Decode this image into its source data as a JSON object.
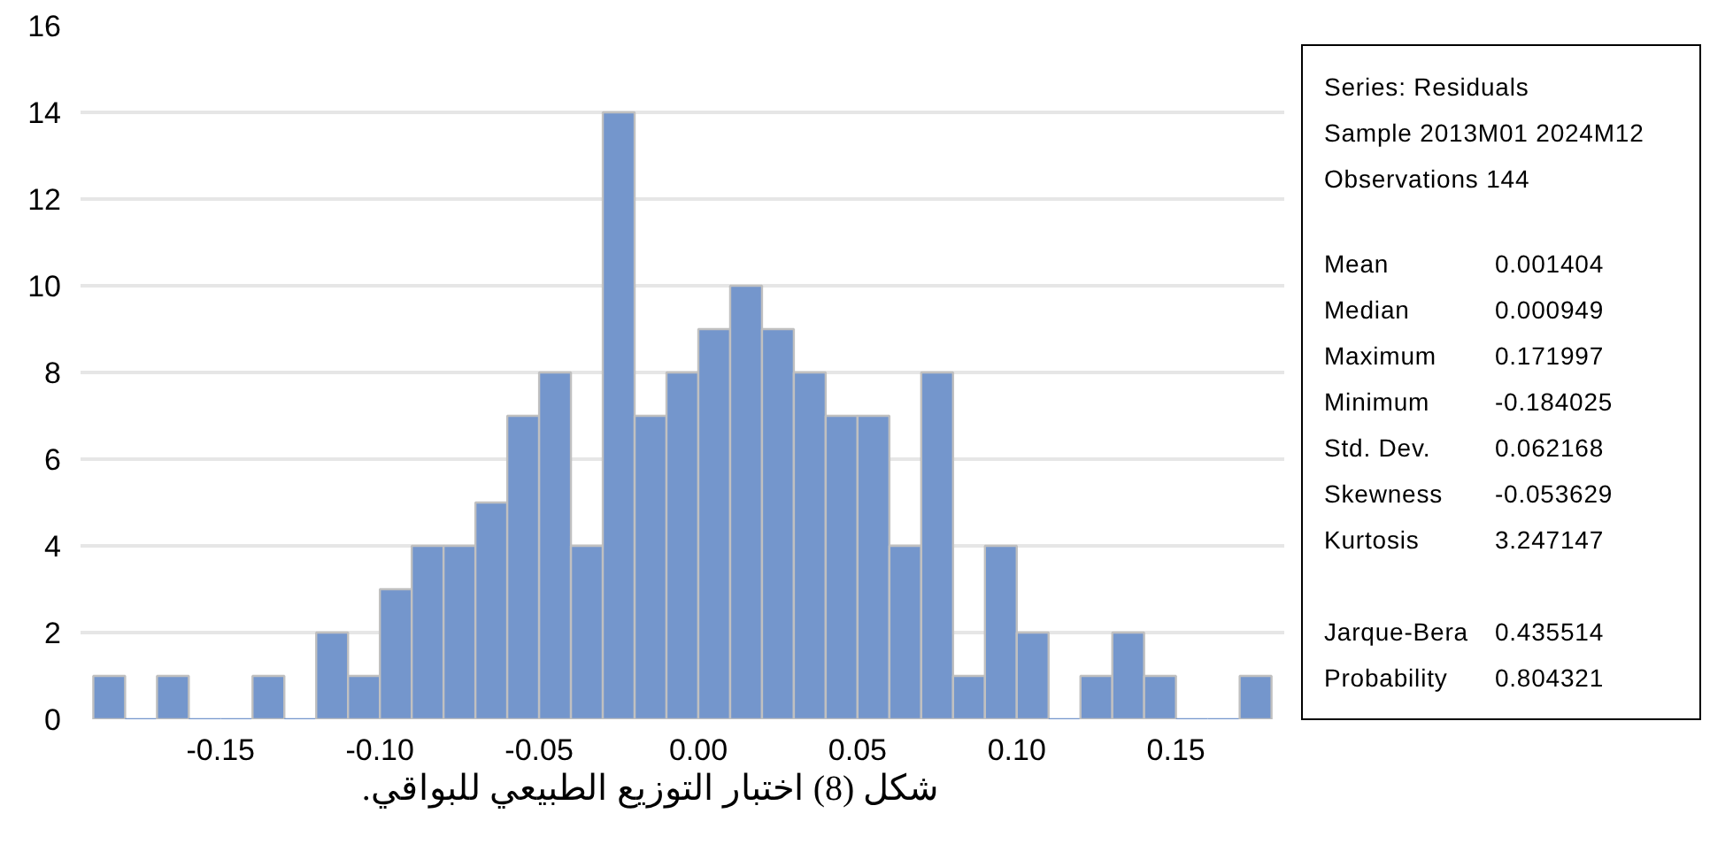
{
  "chart_data": [
    {
      "type": "histogram",
      "color": "#7496cc",
      "bins": [
        -0.19,
        -0.18,
        -0.17,
        -0.16,
        -0.15,
        -0.14,
        -0.13,
        -0.12,
        -0.11,
        -0.1,
        -0.09,
        -0.08,
        -0.07,
        -0.06,
        -0.05,
        -0.04,
        -0.03,
        -0.02,
        -0.01,
        0.0,
        0.01,
        0.02,
        0.03,
        0.04,
        0.05,
        0.06,
        0.07,
        0.08,
        0.09,
        0.1,
        0.11,
        0.12,
        0.13,
        0.14,
        0.15,
        0.16,
        0.17,
        0.18
      ],
      "values": [
        1,
        0,
        1,
        0,
        0,
        1,
        0,
        2,
        1,
        3,
        4,
        4,
        5,
        7,
        8,
        4,
        14,
        7,
        8,
        9,
        10,
        9,
        8,
        7,
        7,
        4,
        8,
        1,
        4,
        2,
        0,
        1,
        2,
        1,
        0,
        0,
        1
      ],
      "xlim": [
        -0.194,
        0.184
      ],
      "xticks": [
        {
          "value": -0.15,
          "label": "-0.15"
        },
        {
          "value": -0.1,
          "label": "-0.10"
        },
        {
          "value": -0.05,
          "label": "-0.05"
        },
        {
          "value": 0,
          "label": "0.00"
        },
        {
          "value": 0.05,
          "label": "0.05"
        },
        {
          "value": 0.1,
          "label": "0.10"
        },
        {
          "value": 0.15,
          "label": "0.15"
        }
      ],
      "ylim": [
        0,
        16
      ],
      "yticks": [
        0,
        2,
        4,
        6,
        8,
        10,
        12,
        14,
        16
      ],
      "grid": "y",
      "annotations": [
        "شكل (8) اختبار التوزيع الطبيعي للبواقي."
      ]
    },
    {
      "type": "other",
      "annotations": [
        "Series: Residuals",
        "Sample 2013M01 2024M12",
        "Observations 144"
      ],
      "categories": [
        "Mean",
        "Median",
        "Maximum",
        "Minimum",
        "Std. Dev.",
        "Skewness",
        "Kurtosis",
        null,
        "Jarque-Bera",
        "Probability"
      ],
      "values": [
        0.001404,
        0.000949,
        0.171997,
        -0.184025,
        0.062168,
        -0.053629,
        3.247147,
        null,
        0.435514,
        0.804321
      ],
      "value_labels": [
        "0.001404",
        "0.000949",
        "0.171997",
        "-0.184025",
        "0.062168",
        "-0.053629",
        "3.247147",
        null,
        "0.435514",
        "0.804321"
      ]
    }
  ]
}
